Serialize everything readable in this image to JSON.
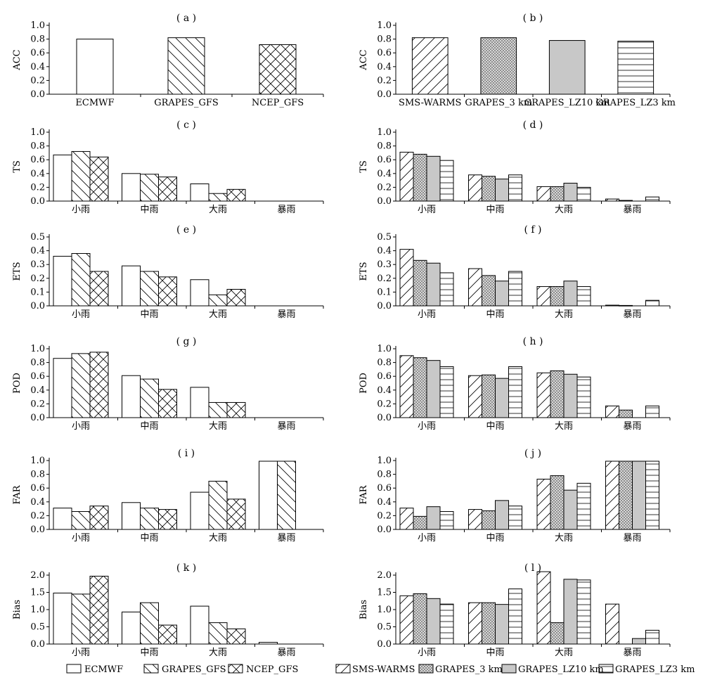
{
  "legend_left": [
    "ECMWF",
    "GRAPES_GFS",
    "NCEP_GFS"
  ],
  "legend_right": [
    "SMS-WARMS",
    "GRAPES_3 km",
    "GRAPES_LZ10 km",
    "GRAPES_LZ3 km"
  ],
  "chart_data": [
    {
      "id": "a",
      "type": "bar",
      "title": "( a )",
      "ylabel": "ACC",
      "ylim": [
        0,
        1.0
      ],
      "yticks": [
        "0.0",
        "0.2",
        "0.4",
        "0.6",
        "0.8",
        "1.0"
      ],
      "categories": [
        "ECMWF",
        "GRAPES_GFS",
        "NCEP_GFS"
      ],
      "series": [
        {
          "values": [
            0.8,
            0.82,
            0.72
          ]
        }
      ]
    },
    {
      "id": "b",
      "type": "bar",
      "title": "( b )",
      "ylabel": "ACC",
      "ylim": [
        0,
        1.0
      ],
      "yticks": [
        "0.0",
        "0.2",
        "0.4",
        "0.6",
        "0.8",
        "1.0"
      ],
      "categories": [
        "SMS-WARMS",
        "GRAPES_3 km",
        "GRAPES_LZ10 km",
        "GRAPES_LZ3 km"
      ],
      "series": [
        {
          "values": [
            0.82,
            0.82,
            0.78,
            0.77
          ]
        }
      ]
    },
    {
      "id": "c",
      "type": "bar",
      "title": "( c )",
      "ylabel": "TS",
      "ylim": [
        0,
        1.0
      ],
      "yticks": [
        "0.0",
        "0.2",
        "0.4",
        "0.6",
        "0.8",
        "1.0"
      ],
      "categories": [
        "小雨",
        "中雨",
        "大雨",
        "暴雨"
      ],
      "series": [
        {
          "name": "ECMWF",
          "values": [
            0.67,
            0.4,
            0.25,
            0.0
          ]
        },
        {
          "name": "GRAPES_GFS",
          "values": [
            0.72,
            0.39,
            0.11,
            0.0
          ]
        },
        {
          "name": "NCEP_GFS",
          "values": [
            0.64,
            0.35,
            0.17,
            0.0
          ]
        }
      ]
    },
    {
      "id": "d",
      "type": "bar",
      "title": "( d )",
      "ylabel": "TS",
      "ylim": [
        0,
        1.0
      ],
      "yticks": [
        "0.0",
        "0.2",
        "0.4",
        "0.6",
        "0.8",
        "1.0"
      ],
      "categories": [
        "小雨",
        "中雨",
        "大雨",
        "暴雨"
      ],
      "series": [
        {
          "name": "SMS-WARMS",
          "values": [
            0.71,
            0.38,
            0.21,
            0.03
          ]
        },
        {
          "name": "GRAPES_3 km",
          "values": [
            0.68,
            0.36,
            0.21,
            0.01
          ]
        },
        {
          "name": "GRAPES_LZ10 km",
          "values": [
            0.65,
            0.32,
            0.26,
            0.0
          ]
        },
        {
          "name": "GRAPES_LZ3 km",
          "values": [
            0.59,
            0.38,
            0.2,
            0.06
          ]
        }
      ]
    },
    {
      "id": "e",
      "type": "bar",
      "title": "( e )",
      "ylabel": "ETS",
      "ylim": [
        0,
        0.5
      ],
      "yticks": [
        "0.0",
        "0.1",
        "0.2",
        "0.3",
        "0.4",
        "0.5"
      ],
      "categories": [
        "小雨",
        "中雨",
        "大雨",
        "暴雨"
      ],
      "series": [
        {
          "name": "ECMWF",
          "values": [
            0.36,
            0.29,
            0.19,
            0.0
          ]
        },
        {
          "name": "GRAPES_GFS",
          "values": [
            0.38,
            0.25,
            0.08,
            0.0
          ]
        },
        {
          "name": "NCEP_GFS",
          "values": [
            0.25,
            0.21,
            0.12,
            0.0
          ]
        }
      ]
    },
    {
      "id": "f",
      "type": "bar",
      "title": "( f )",
      "ylabel": "ETS",
      "ylim": [
        0,
        0.5
      ],
      "yticks": [
        "0.0",
        "0.1",
        "0.2",
        "0.3",
        "0.4",
        "0.5"
      ],
      "categories": [
        "小雨",
        "中雨",
        "大雨",
        "暴雨"
      ],
      "series": [
        {
          "name": "SMS-WARMS",
          "values": [
            0.41,
            0.27,
            0.14,
            0.005
          ]
        },
        {
          "name": "GRAPES_3 km",
          "values": [
            0.33,
            0.22,
            0.14,
            0.003
          ]
        },
        {
          "name": "GRAPES_LZ10 km",
          "values": [
            0.31,
            0.18,
            0.18,
            0.0
          ]
        },
        {
          "name": "GRAPES_LZ3 km",
          "values": [
            0.24,
            0.25,
            0.14,
            0.04
          ]
        }
      ]
    },
    {
      "id": "g",
      "type": "bar",
      "title": "( g )",
      "ylabel": "POD",
      "ylim": [
        0,
        1.0
      ],
      "yticks": [
        "0.0",
        "0.2",
        "0.4",
        "0.6",
        "0.8",
        "1.0"
      ],
      "categories": [
        "小雨",
        "中雨",
        "大雨",
        "暴雨"
      ],
      "series": [
        {
          "name": "ECMWF",
          "values": [
            0.86,
            0.61,
            0.44,
            0.0
          ]
        },
        {
          "name": "GRAPES_GFS",
          "values": [
            0.93,
            0.56,
            0.22,
            0.0
          ]
        },
        {
          "name": "NCEP_GFS",
          "values": [
            0.95,
            0.41,
            0.22,
            0.0
          ]
        }
      ]
    },
    {
      "id": "h",
      "type": "bar",
      "title": "( h )",
      "ylabel": "POD",
      "ylim": [
        0,
        1.0
      ],
      "yticks": [
        "0.0",
        "0.2",
        "0.4",
        "0.6",
        "0.8",
        "1.0"
      ],
      "categories": [
        "小雨",
        "中雨",
        "大雨",
        "暴雨"
      ],
      "series": [
        {
          "name": "SMS-WARMS",
          "values": [
            0.9,
            0.61,
            0.65,
            0.17
          ]
        },
        {
          "name": "GRAPES_3 km",
          "values": [
            0.87,
            0.62,
            0.68,
            0.11
          ]
        },
        {
          "name": "GRAPES_LZ10 km",
          "values": [
            0.83,
            0.57,
            0.63,
            0.0
          ]
        },
        {
          "name": "GRAPES_LZ3 km",
          "values": [
            0.74,
            0.74,
            0.59,
            0.17
          ]
        }
      ]
    },
    {
      "id": "i",
      "type": "bar",
      "title": "( i )",
      "ylabel": "FAR",
      "ylim": [
        0,
        1.0
      ],
      "yticks": [
        "0.0",
        "0.2",
        "0.4",
        "0.6",
        "0.8",
        "1.0"
      ],
      "categories": [
        "小雨",
        "中雨",
        "大雨",
        "暴雨"
      ],
      "series": [
        {
          "name": "ECMWF",
          "values": [
            0.31,
            0.39,
            0.54,
            0.99
          ]
        },
        {
          "name": "GRAPES_GFS",
          "values": [
            0.26,
            0.31,
            0.7,
            0.99
          ]
        },
        {
          "name": "NCEP_GFS",
          "values": [
            0.34,
            0.29,
            0.44,
            0.0
          ]
        }
      ]
    },
    {
      "id": "j",
      "type": "bar",
      "title": "( j )",
      "ylabel": "FAR",
      "ylim": [
        0,
        1.0
      ],
      "yticks": [
        "0.0",
        "0.2",
        "0.4",
        "0.6",
        "0.8",
        "1.0"
      ],
      "categories": [
        "小雨",
        "中雨",
        "大雨",
        "暴雨"
      ],
      "series": [
        {
          "name": "SMS-WARMS",
          "values": [
            0.31,
            0.29,
            0.73,
            0.99
          ]
        },
        {
          "name": "GRAPES_3 km",
          "values": [
            0.19,
            0.27,
            0.78,
            0.99
          ]
        },
        {
          "name": "GRAPES_LZ10 km",
          "values": [
            0.33,
            0.42,
            0.57,
            0.99
          ]
        },
        {
          "name": "GRAPES_LZ3 km",
          "values": [
            0.26,
            0.34,
            0.67,
            0.99
          ]
        }
      ]
    },
    {
      "id": "k",
      "type": "bar",
      "title": "( k )",
      "ylabel": "Bias",
      "ylim": [
        0,
        2.0
      ],
      "yticks": [
        "0.0",
        "0.5",
        "1.0",
        "1.5",
        "2.0"
      ],
      "categories": [
        "小雨",
        "中雨",
        "大雨",
        "暴雨"
      ],
      "series": [
        {
          "name": "ECMWF",
          "values": [
            1.48,
            0.93,
            1.1,
            0.05
          ]
        },
        {
          "name": "GRAPES_GFS",
          "values": [
            1.45,
            1.2,
            0.62,
            0.0
          ]
        },
        {
          "name": "NCEP_GFS",
          "values": [
            1.97,
            0.55,
            0.44,
            0.0
          ]
        }
      ]
    },
    {
      "id": "l",
      "type": "bar",
      "title": "( l )",
      "ylabel": "Bias",
      "ylim": [
        0,
        2.0
      ],
      "yticks": [
        "0.0",
        "0.5",
        "1.0",
        "1.5",
        "2.0"
      ],
      "categories": [
        "小雨",
        "中雨",
        "大雨",
        "暴雨"
      ],
      "series": [
        {
          "name": "SMS-WARMS",
          "values": [
            1.4,
            1.2,
            2.1,
            1.16
          ]
        },
        {
          "name": "GRAPES_3 km",
          "values": [
            1.46,
            1.2,
            0.62,
            0.0
          ]
        },
        {
          "name": "GRAPES_LZ10 km",
          "values": [
            1.32,
            1.15,
            1.88,
            0.16
          ]
        },
        {
          "name": "GRAPES_LZ3 km",
          "values": [
            1.16,
            1.6,
            1.86,
            0.4
          ]
        }
      ]
    }
  ]
}
